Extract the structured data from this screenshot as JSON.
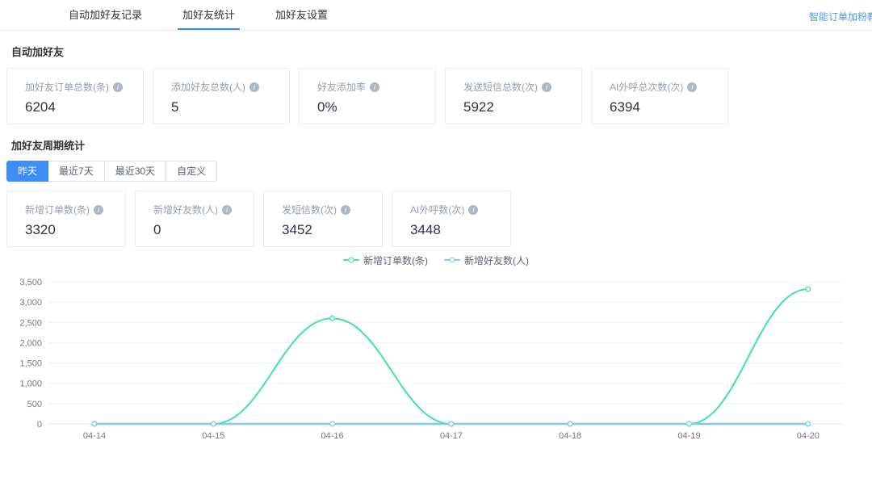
{
  "tabs": [
    {
      "label": "自动加好友记录",
      "active": false
    },
    {
      "label": "加好友统计",
      "active": true
    },
    {
      "label": "加好友设置",
      "active": false
    }
  ],
  "header_link": "智能订单加粉教程",
  "icons": {
    "info_glyph": "i"
  },
  "colors": {
    "accent": "#3d8bf2",
    "series_teal": "#3fe0b4",
    "series_blue": "#7ec9f5"
  },
  "section1": {
    "title": "自动加好友",
    "cards": [
      {
        "label": "加好友订单总数(条)",
        "value": "6204"
      },
      {
        "label": "添加好友总数(人)",
        "value": "5"
      },
      {
        "label": "好友添加率",
        "value": "0%"
      },
      {
        "label": "发送短信总数(次)",
        "value": "5922"
      },
      {
        "label": "AI外呼总次数(次)",
        "value": "6394"
      }
    ]
  },
  "section2": {
    "title": "加好友周期统计",
    "filters": [
      {
        "label": "昨天",
        "active": true
      },
      {
        "label": "最近7天",
        "active": false
      },
      {
        "label": "最近30天",
        "active": false
      },
      {
        "label": "自定义",
        "active": false
      }
    ],
    "cards": [
      {
        "label": "新增订单数(条)",
        "value": "3320"
      },
      {
        "label": "新增好友数(人)",
        "value": "0"
      },
      {
        "label": "发短信数(次)",
        "value": "3452"
      },
      {
        "label": "AI外呼数(次)",
        "value": "3448"
      }
    ]
  },
  "chart_data": {
    "type": "line",
    "title": "",
    "xlabel": "",
    "ylabel": "",
    "x": [
      "04-14",
      "04-15",
      "04-16",
      "04-17",
      "04-18",
      "04-19",
      "04-20"
    ],
    "series": [
      {
        "name": "新增订单数(条)",
        "color": "#3fe0b4",
        "values": [
          0,
          0,
          2600,
          0,
          0,
          0,
          3320
        ]
      },
      {
        "name": "新增好友数(人)",
        "color": "#7ec9f5",
        "values": [
          0,
          0,
          0,
          0,
          0,
          0,
          0
        ]
      }
    ],
    "ylim": [
      0,
      3500
    ],
    "ytick_step": 500,
    "grid": true,
    "smooth": true,
    "legend_position": "top-center"
  }
}
